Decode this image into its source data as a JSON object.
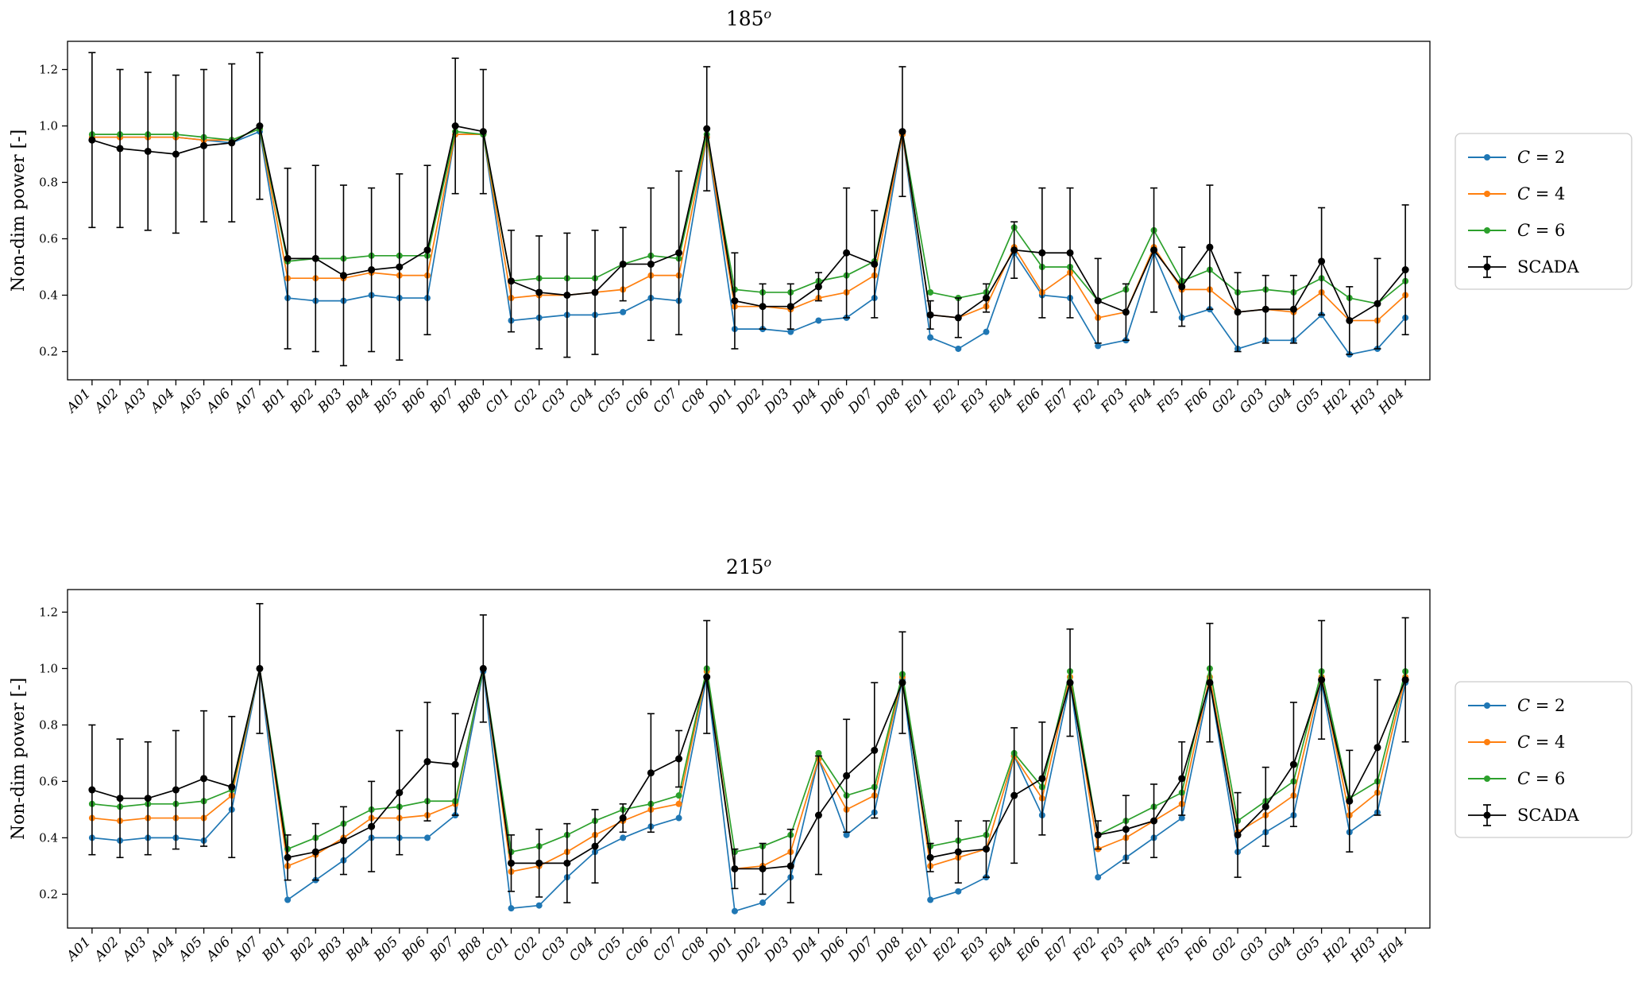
{
  "figure": {
    "background": "#ffffff",
    "ylabel": "Non-dim power [-]"
  },
  "colors": {
    "c2": "#1f77b4",
    "c4": "#ff7f0e",
    "c6": "#2ca02c",
    "scada": "#000000",
    "legend_border": "#cccccc"
  },
  "chart_data": [
    {
      "type": "line",
      "title": "185",
      "title_sup": "o",
      "ylabel": "Non-dim power [-]",
      "ylim": [
        0.1,
        1.3
      ],
      "yticks": [
        0.2,
        0.4,
        0.6,
        0.8,
        1.0,
        1.2
      ],
      "legend_position": "center right outside",
      "grid": false,
      "categories": [
        "A01",
        "A02",
        "A03",
        "A04",
        "A05",
        "A06",
        "A07",
        "B01",
        "B02",
        "B03",
        "B04",
        "B05",
        "B06",
        "B07",
        "B08",
        "C01",
        "C02",
        "C03",
        "C04",
        "C05",
        "C06",
        "C07",
        "C08",
        "D01",
        "D02",
        "D03",
        "D04",
        "D06",
        "D07",
        "D08",
        "E01",
        "E02",
        "E03",
        "E04",
        "E06",
        "E07",
        "F02",
        "F03",
        "F04",
        "F05",
        "F06",
        "G02",
        "G03",
        "G04",
        "G05",
        "H02",
        "H03",
        "H04"
      ],
      "series": [
        {
          "name": "C = 2",
          "color": "#1f77b4",
          "values": [
            0.96,
            0.96,
            0.96,
            0.96,
            0.95,
            0.94,
            0.98,
            0.39,
            0.38,
            0.38,
            0.4,
            0.39,
            0.39,
            0.97,
            0.97,
            0.31,
            0.32,
            0.33,
            0.33,
            0.34,
            0.39,
            0.38,
            0.96,
            0.28,
            0.28,
            0.27,
            0.31,
            0.32,
            0.39,
            0.97,
            0.25,
            0.21,
            0.27,
            0.55,
            0.4,
            0.39,
            0.22,
            0.24,
            0.55,
            0.32,
            0.35,
            0.21,
            0.24,
            0.24,
            0.33,
            0.19,
            0.21,
            0.32
          ]
        },
        {
          "name": "C = 4",
          "color": "#ff7f0e",
          "values": [
            0.96,
            0.96,
            0.96,
            0.96,
            0.95,
            0.95,
            0.99,
            0.46,
            0.46,
            0.46,
            0.48,
            0.47,
            0.47,
            0.97,
            0.97,
            0.39,
            0.4,
            0.4,
            0.41,
            0.42,
            0.47,
            0.47,
            0.96,
            0.36,
            0.36,
            0.35,
            0.39,
            0.41,
            0.47,
            0.97,
            0.33,
            0.32,
            0.36,
            0.57,
            0.41,
            0.48,
            0.32,
            0.34,
            0.57,
            0.42,
            0.42,
            0.34,
            0.35,
            0.34,
            0.41,
            0.31,
            0.31,
            0.4
          ]
        },
        {
          "name": "C = 6",
          "color": "#2ca02c",
          "values": [
            0.97,
            0.97,
            0.97,
            0.97,
            0.96,
            0.95,
            0.99,
            0.52,
            0.53,
            0.53,
            0.54,
            0.54,
            0.54,
            0.98,
            0.97,
            0.45,
            0.46,
            0.46,
            0.46,
            0.51,
            0.54,
            0.53,
            0.97,
            0.42,
            0.41,
            0.41,
            0.45,
            0.47,
            0.52,
            0.98,
            0.41,
            0.39,
            0.41,
            0.64,
            0.5,
            0.5,
            0.38,
            0.42,
            0.63,
            0.45,
            0.49,
            0.41,
            0.42,
            0.41,
            0.46,
            0.39,
            0.37,
            0.45
          ]
        },
        {
          "name": "SCADA",
          "color": "#000000",
          "values": [
            0.95,
            0.92,
            0.91,
            0.9,
            0.93,
            0.94,
            1.0,
            0.53,
            0.53,
            0.47,
            0.49,
            0.5,
            0.56,
            1.0,
            0.98,
            0.45,
            0.41,
            0.4,
            0.41,
            0.51,
            0.51,
            0.55,
            0.99,
            0.38,
            0.36,
            0.36,
            0.43,
            0.55,
            0.51,
            0.98,
            0.33,
            0.32,
            0.39,
            0.56,
            0.55,
            0.55,
            0.38,
            0.34,
            0.56,
            0.43,
            0.57,
            0.34,
            0.35,
            0.35,
            0.52,
            0.31,
            0.37,
            0.49
          ],
          "errors": [
            0.31,
            0.28,
            0.28,
            0.28,
            0.27,
            0.28,
            0.26,
            0.32,
            0.33,
            0.32,
            0.29,
            0.33,
            0.3,
            0.24,
            0.22,
            0.18,
            0.2,
            0.22,
            0.22,
            0.13,
            0.27,
            0.29,
            0.22,
            0.17,
            0.08,
            0.08,
            0.05,
            0.23,
            0.19,
            0.23,
            0.05,
            0.07,
            0.05,
            0.1,
            0.23,
            0.23,
            0.15,
            0.1,
            0.22,
            0.14,
            0.22,
            0.14,
            0.12,
            0.12,
            0.19,
            0.12,
            0.16,
            0.23
          ]
        }
      ]
    },
    {
      "type": "line",
      "title": "215",
      "title_sup": "o",
      "ylabel": "Non-dim power [-]",
      "ylim": [
        0.08,
        1.28
      ],
      "yticks": [
        0.2,
        0.4,
        0.6,
        0.8,
        1.0,
        1.2
      ],
      "legend_position": "center right outside",
      "grid": false,
      "categories": [
        "A01",
        "A02",
        "A03",
        "A04",
        "A05",
        "A06",
        "A07",
        "B01",
        "B02",
        "B03",
        "B04",
        "B05",
        "B06",
        "B07",
        "B08",
        "C01",
        "C02",
        "C03",
        "C04",
        "C05",
        "C06",
        "C07",
        "C08",
        "D01",
        "D02",
        "D03",
        "D04",
        "D06",
        "D07",
        "D08",
        "E01",
        "E02",
        "E03",
        "E04",
        "E06",
        "E07",
        "F02",
        "F03",
        "F04",
        "F05",
        "F06",
        "G02",
        "G03",
        "G04",
        "G05",
        "H02",
        "H03",
        "H04"
      ],
      "series": [
        {
          "name": "C = 2",
          "color": "#1f77b4",
          "values": [
            0.4,
            0.39,
            0.4,
            0.4,
            0.39,
            0.5,
            1.0,
            0.18,
            0.25,
            0.32,
            0.4,
            0.4,
            0.4,
            0.48,
            0.99,
            0.15,
            0.16,
            0.26,
            0.35,
            0.4,
            0.44,
            0.47,
            0.97,
            0.14,
            0.17,
            0.26,
            0.68,
            0.41,
            0.49,
            0.96,
            0.18,
            0.21,
            0.26,
            0.69,
            0.48,
            0.95,
            0.26,
            0.33,
            0.4,
            0.47,
            0.95,
            0.35,
            0.42,
            0.48,
            0.95,
            0.42,
            0.49,
            0.95
          ]
        },
        {
          "name": "C = 4",
          "color": "#ff7f0e",
          "values": [
            0.47,
            0.46,
            0.47,
            0.47,
            0.47,
            0.55,
            1.0,
            0.3,
            0.34,
            0.4,
            0.47,
            0.47,
            0.48,
            0.52,
            1.0,
            0.28,
            0.3,
            0.35,
            0.41,
            0.46,
            0.5,
            0.52,
            0.99,
            0.29,
            0.3,
            0.35,
            0.68,
            0.5,
            0.55,
            0.97,
            0.3,
            0.33,
            0.36,
            0.69,
            0.54,
            0.97,
            0.36,
            0.4,
            0.46,
            0.52,
            0.97,
            0.42,
            0.48,
            0.55,
            0.97,
            0.48,
            0.56,
            0.97
          ]
        },
        {
          "name": "C = 6",
          "color": "#2ca02c",
          "values": [
            0.52,
            0.51,
            0.52,
            0.52,
            0.53,
            0.57,
            1.0,
            0.36,
            0.4,
            0.45,
            0.5,
            0.51,
            0.53,
            0.53,
            1.0,
            0.35,
            0.37,
            0.41,
            0.46,
            0.5,
            0.52,
            0.55,
            1.0,
            0.35,
            0.37,
            0.41,
            0.7,
            0.55,
            0.58,
            0.98,
            0.37,
            0.39,
            0.41,
            0.7,
            0.58,
            0.99,
            0.41,
            0.46,
            0.51,
            0.56,
            1.0,
            0.46,
            0.53,
            0.6,
            0.99,
            0.54,
            0.6,
            0.99
          ]
        },
        {
          "name": "SCADA",
          "color": "#000000",
          "values": [
            0.57,
            0.54,
            0.54,
            0.57,
            0.61,
            0.58,
            1.0,
            0.33,
            0.35,
            0.39,
            0.44,
            0.56,
            0.67,
            0.66,
            1.0,
            0.31,
            0.31,
            0.31,
            0.37,
            0.47,
            0.63,
            0.68,
            0.97,
            0.29,
            0.29,
            0.3,
            0.48,
            0.62,
            0.71,
            0.95,
            0.33,
            0.35,
            0.36,
            0.55,
            0.61,
            0.95,
            0.41,
            0.43,
            0.46,
            0.61,
            0.95,
            0.41,
            0.51,
            0.66,
            0.96,
            0.53,
            0.72,
            0.96
          ],
          "errors": [
            0.23,
            0.21,
            0.2,
            0.21,
            0.24,
            0.25,
            0.23,
            0.08,
            0.1,
            0.12,
            0.16,
            0.22,
            0.21,
            0.18,
            0.19,
            0.1,
            0.12,
            0.14,
            0.13,
            0.05,
            0.21,
            0.1,
            0.2,
            0.07,
            0.09,
            0.13,
            0.21,
            0.2,
            0.24,
            0.18,
            0.05,
            0.11,
            0.1,
            0.24,
            0.2,
            0.19,
            0.05,
            0.12,
            0.13,
            0.13,
            0.21,
            0.15,
            0.14,
            0.22,
            0.21,
            0.18,
            0.24,
            0.22
          ]
        }
      ]
    }
  ]
}
